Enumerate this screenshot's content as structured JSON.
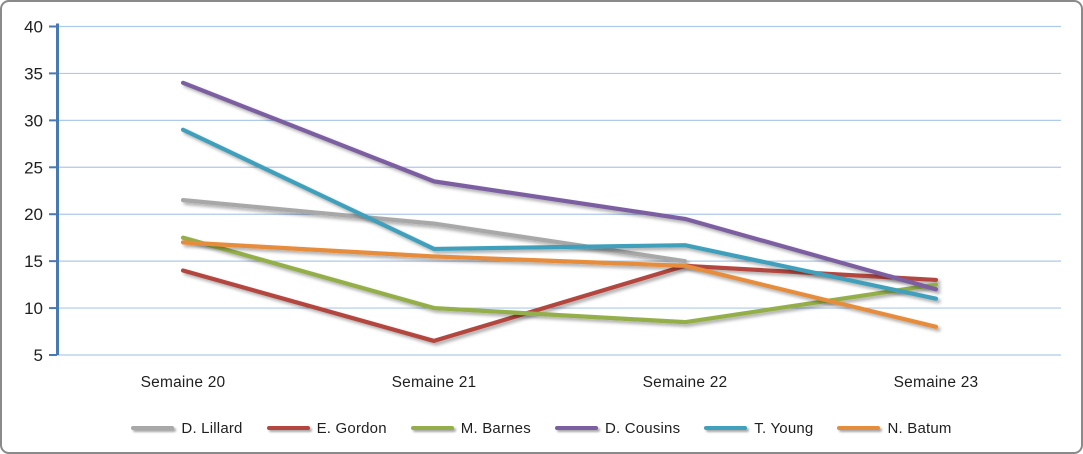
{
  "chart_data": {
    "type": "line",
    "title": "",
    "xlabel": "",
    "ylabel": "",
    "categories": [
      "Semaine 20",
      "Semaine 21",
      "Semaine 22",
      "Semaine 23"
    ],
    "series": [
      {
        "name": "D. Lillard",
        "color": "#A8A8A8",
        "values": [
          21.5,
          19,
          15,
          null
        ]
      },
      {
        "name": "E. Gordon",
        "color": "#B3473F",
        "values": [
          14,
          6.5,
          14.5,
          13
        ]
      },
      {
        "name": "M. Barnes",
        "color": "#94AF4A",
        "values": [
          17.5,
          10,
          8.5,
          12.5
        ]
      },
      {
        "name": "D. Cousins",
        "color": "#7C5FA0",
        "values": [
          34,
          23.5,
          19.5,
          12
        ]
      },
      {
        "name": "T. Young",
        "color": "#41A0BC",
        "values": [
          29,
          16.3,
          16.7,
          11
        ]
      },
      {
        "name": "N. Batum",
        "color": "#E68C3D",
        "values": [
          17,
          15.5,
          14.5,
          8
        ]
      }
    ],
    "ylim": [
      5,
      40
    ],
    "y_ticks": [
      40,
      35,
      30,
      25,
      20,
      15,
      10,
      5
    ],
    "grid": true,
    "legend_position": "bottom"
  },
  "style": {
    "axis_color": "#4779B4",
    "gridline_color": "#AFC9E8",
    "border_color": "#8A8A8A",
    "background": "#FFFFFF",
    "text_color": "#1F1F1F"
  }
}
